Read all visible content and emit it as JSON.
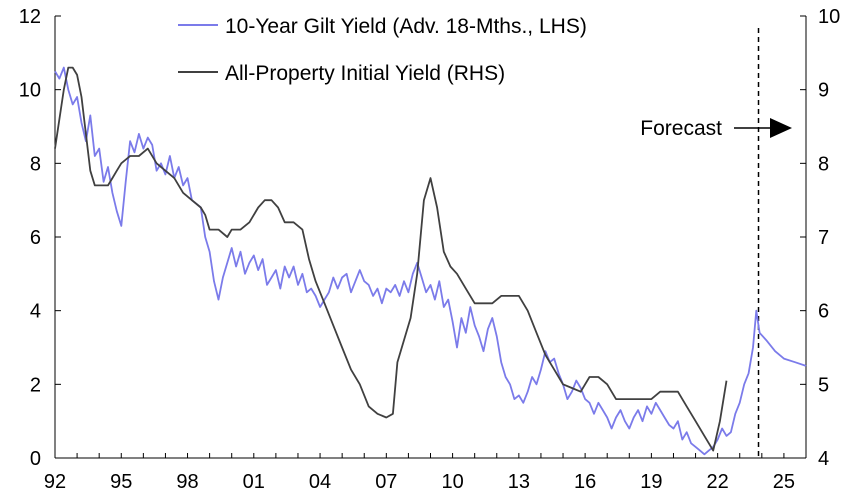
{
  "chart_data": {
    "type": "line",
    "title": "",
    "xlabel": "",
    "ylabel_left": "",
    "ylabel_right": "",
    "x_range": [
      1992.0,
      2026.0
    ],
    "ylim_left": [
      0,
      12
    ],
    "ylim_right": [
      4,
      10
    ],
    "x_ticks": [
      {
        "value": 1992,
        "label": "92"
      },
      {
        "value": 1995,
        "label": "95"
      },
      {
        "value": 1998,
        "label": "98"
      },
      {
        "value": 2001,
        "label": "01"
      },
      {
        "value": 2004,
        "label": "04"
      },
      {
        "value": 2007,
        "label": "07"
      },
      {
        "value": 2010,
        "label": "10"
      },
      {
        "value": 2013,
        "label": "13"
      },
      {
        "value": 2016,
        "label": "16"
      },
      {
        "value": 2019,
        "label": "19"
      },
      {
        "value": 2022,
        "label": "22"
      },
      {
        "value": 2025,
        "label": "25"
      }
    ],
    "y_ticks_left": [
      "0",
      "2",
      "4",
      "6",
      "8",
      "10",
      "12"
    ],
    "y_ticks_right": [
      "4",
      "5",
      "6",
      "7",
      "8",
      "9",
      "10"
    ],
    "series": [
      {
        "name": "10-Year Gilt Yield (Adv. 18-Mths., LHS)",
        "axis": "left",
        "color": "#7b7bea",
        "points": [
          [
            1992.0,
            10.5
          ],
          [
            1992.2,
            10.3
          ],
          [
            1992.4,
            10.6
          ],
          [
            1992.6,
            10.0
          ],
          [
            1992.8,
            9.6
          ],
          [
            1993.0,
            9.8
          ],
          [
            1993.2,
            9.1
          ],
          [
            1993.4,
            8.6
          ],
          [
            1993.6,
            9.3
          ],
          [
            1993.8,
            8.2
          ],
          [
            1994.0,
            8.4
          ],
          [
            1994.2,
            7.5
          ],
          [
            1994.4,
            7.9
          ],
          [
            1994.6,
            7.2
          ],
          [
            1994.8,
            6.7
          ],
          [
            1995.0,
            6.3
          ],
          [
            1995.2,
            7.5
          ],
          [
            1995.4,
            8.6
          ],
          [
            1995.6,
            8.3
          ],
          [
            1995.8,
            8.8
          ],
          [
            1996.0,
            8.4
          ],
          [
            1996.2,
            8.7
          ],
          [
            1996.4,
            8.5
          ],
          [
            1996.6,
            7.8
          ],
          [
            1996.8,
            8.0
          ],
          [
            1997.0,
            7.7
          ],
          [
            1997.2,
            8.2
          ],
          [
            1997.4,
            7.6
          ],
          [
            1997.6,
            7.9
          ],
          [
            1997.8,
            7.4
          ],
          [
            1998.0,
            7.6
          ],
          [
            1998.2,
            7.0
          ],
          [
            1998.4,
            6.9
          ],
          [
            1998.6,
            6.8
          ],
          [
            1998.8,
            6.0
          ],
          [
            1999.0,
            5.6
          ],
          [
            1999.2,
            4.8
          ],
          [
            1999.4,
            4.3
          ],
          [
            1999.6,
            4.9
          ],
          [
            1999.8,
            5.3
          ],
          [
            2000.0,
            5.7
          ],
          [
            2000.2,
            5.2
          ],
          [
            2000.4,
            5.6
          ],
          [
            2000.6,
            5.0
          ],
          [
            2000.8,
            5.3
          ],
          [
            2001.0,
            5.5
          ],
          [
            2001.2,
            5.1
          ],
          [
            2001.4,
            5.4
          ],
          [
            2001.6,
            4.7
          ],
          [
            2001.8,
            4.9
          ],
          [
            2002.0,
            5.1
          ],
          [
            2002.2,
            4.6
          ],
          [
            2002.4,
            5.2
          ],
          [
            2002.6,
            4.9
          ],
          [
            2002.8,
            5.2
          ],
          [
            2003.0,
            4.7
          ],
          [
            2003.2,
            5.0
          ],
          [
            2003.4,
            4.5
          ],
          [
            2003.6,
            4.6
          ],
          [
            2003.8,
            4.4
          ],
          [
            2004.0,
            4.1
          ],
          [
            2004.2,
            4.3
          ],
          [
            2004.4,
            4.5
          ],
          [
            2004.6,
            4.9
          ],
          [
            2004.8,
            4.6
          ],
          [
            2005.0,
            4.9
          ],
          [
            2005.2,
            5.0
          ],
          [
            2005.4,
            4.5
          ],
          [
            2005.6,
            4.8
          ],
          [
            2005.8,
            5.1
          ],
          [
            2006.0,
            4.8
          ],
          [
            2006.2,
            4.7
          ],
          [
            2006.4,
            4.4
          ],
          [
            2006.6,
            4.6
          ],
          [
            2006.8,
            4.2
          ],
          [
            2007.0,
            4.6
          ],
          [
            2007.2,
            4.5
          ],
          [
            2007.4,
            4.7
          ],
          [
            2007.6,
            4.4
          ],
          [
            2007.8,
            4.8
          ],
          [
            2008.0,
            4.5
          ],
          [
            2008.2,
            5.0
          ],
          [
            2008.4,
            5.3
          ],
          [
            2008.6,
            4.9
          ],
          [
            2008.8,
            4.5
          ],
          [
            2009.0,
            4.7
          ],
          [
            2009.2,
            4.3
          ],
          [
            2009.4,
            4.8
          ],
          [
            2009.6,
            4.1
          ],
          [
            2009.8,
            4.3
          ],
          [
            2010.0,
            3.7
          ],
          [
            2010.2,
            3.0
          ],
          [
            2010.4,
            3.8
          ],
          [
            2010.6,
            3.4
          ],
          [
            2010.8,
            4.1
          ],
          [
            2011.0,
            3.6
          ],
          [
            2011.2,
            3.3
          ],
          [
            2011.4,
            2.9
          ],
          [
            2011.6,
            3.5
          ],
          [
            2011.8,
            3.8
          ],
          [
            2012.0,
            3.3
          ],
          [
            2012.2,
            2.6
          ],
          [
            2012.4,
            2.2
          ],
          [
            2012.6,
            2.0
          ],
          [
            2012.8,
            1.6
          ],
          [
            2013.0,
            1.7
          ],
          [
            2013.2,
            1.5
          ],
          [
            2013.4,
            1.8
          ],
          [
            2013.6,
            2.2
          ],
          [
            2013.8,
            2.0
          ],
          [
            2014.0,
            2.4
          ],
          [
            2014.2,
            2.9
          ],
          [
            2014.4,
            2.6
          ],
          [
            2014.6,
            2.7
          ],
          [
            2014.8,
            2.3
          ],
          [
            2015.0,
            2.0
          ],
          [
            2015.2,
            1.6
          ],
          [
            2015.4,
            1.8
          ],
          [
            2015.6,
            2.1
          ],
          [
            2015.8,
            1.9
          ],
          [
            2016.0,
            1.6
          ],
          [
            2016.2,
            1.5
          ],
          [
            2016.4,
            1.2
          ],
          [
            2016.6,
            1.5
          ],
          [
            2016.8,
            1.3
          ],
          [
            2017.0,
            1.1
          ],
          [
            2017.2,
            0.8
          ],
          [
            2017.4,
            1.1
          ],
          [
            2017.6,
            1.3
          ],
          [
            2017.8,
            1.0
          ],
          [
            2018.0,
            0.8
          ],
          [
            2018.2,
            1.1
          ],
          [
            2018.4,
            1.3
          ],
          [
            2018.6,
            1.0
          ],
          [
            2018.8,
            1.4
          ],
          [
            2019.0,
            1.2
          ],
          [
            2019.2,
            1.5
          ],
          [
            2019.4,
            1.3
          ],
          [
            2019.6,
            1.1
          ],
          [
            2019.8,
            0.9
          ],
          [
            2020.0,
            0.8
          ],
          [
            2020.2,
            1.0
          ],
          [
            2020.4,
            0.5
          ],
          [
            2020.6,
            0.7
          ],
          [
            2020.8,
            0.4
          ],
          [
            2021.0,
            0.3
          ],
          [
            2021.2,
            0.2
          ],
          [
            2021.4,
            0.1
          ],
          [
            2021.6,
            0.2
          ],
          [
            2021.8,
            0.3
          ],
          [
            2022.0,
            0.5
          ],
          [
            2022.2,
            0.8
          ],
          [
            2022.4,
            0.6
          ],
          [
            2022.6,
            0.7
          ],
          [
            2022.8,
            1.2
          ],
          [
            2023.0,
            1.5
          ],
          [
            2023.2,
            2.0
          ],
          [
            2023.4,
            2.3
          ],
          [
            2023.6,
            3.0
          ],
          [
            2023.75,
            4.0
          ],
          [
            2023.9,
            3.4
          ],
          [
            2024.2,
            3.2
          ],
          [
            2024.6,
            2.9
          ],
          [
            2025.0,
            2.7
          ],
          [
            2025.5,
            2.6
          ],
          [
            2026.0,
            2.5
          ]
        ]
      },
      {
        "name": "All-Property Initial Yield (RHS)",
        "axis": "right",
        "color": "#404040",
        "points": [
          [
            1992.0,
            8.2
          ],
          [
            1992.2,
            8.6
          ],
          [
            1992.4,
            9.0
          ],
          [
            1992.6,
            9.3
          ],
          [
            1992.8,
            9.3
          ],
          [
            1993.0,
            9.2
          ],
          [
            1993.2,
            8.9
          ],
          [
            1993.4,
            8.4
          ],
          [
            1993.6,
            7.9
          ],
          [
            1993.8,
            7.7
          ],
          [
            1994.0,
            7.7
          ],
          [
            1994.2,
            7.7
          ],
          [
            1994.4,
            7.7
          ],
          [
            1994.6,
            7.8
          ],
          [
            1994.8,
            7.9
          ],
          [
            1995.0,
            8.0
          ],
          [
            1995.4,
            8.1
          ],
          [
            1995.8,
            8.1
          ],
          [
            1996.2,
            8.2
          ],
          [
            1996.6,
            8.0
          ],
          [
            1997.0,
            7.9
          ],
          [
            1997.4,
            7.8
          ],
          [
            1997.8,
            7.6
          ],
          [
            1998.2,
            7.5
          ],
          [
            1998.6,
            7.4
          ],
          [
            1998.8,
            7.3
          ],
          [
            1999.0,
            7.1
          ],
          [
            1999.4,
            7.1
          ],
          [
            1999.8,
            7.0
          ],
          [
            2000.0,
            7.1
          ],
          [
            2000.4,
            7.1
          ],
          [
            2000.8,
            7.2
          ],
          [
            2001.2,
            7.4
          ],
          [
            2001.5,
            7.5
          ],
          [
            2001.8,
            7.5
          ],
          [
            2002.1,
            7.4
          ],
          [
            2002.4,
            7.2
          ],
          [
            2002.8,
            7.2
          ],
          [
            2003.2,
            7.1
          ],
          [
            2003.5,
            6.7
          ],
          [
            2003.8,
            6.4
          ],
          [
            2004.2,
            6.1
          ],
          [
            2004.6,
            5.8
          ],
          [
            2005.0,
            5.5
          ],
          [
            2005.4,
            5.2
          ],
          [
            2005.8,
            5.0
          ],
          [
            2006.2,
            4.7
          ],
          [
            2006.6,
            4.6
          ],
          [
            2007.0,
            4.55
          ],
          [
            2007.3,
            4.6
          ],
          [
            2007.5,
            5.3
          ],
          [
            2007.8,
            5.6
          ],
          [
            2008.1,
            5.9
          ],
          [
            2008.4,
            6.5
          ],
          [
            2008.7,
            7.5
          ],
          [
            2009.0,
            7.8
          ],
          [
            2009.3,
            7.4
          ],
          [
            2009.6,
            6.8
          ],
          [
            2009.9,
            6.6
          ],
          [
            2010.2,
            6.5
          ],
          [
            2010.6,
            6.3
          ],
          [
            2011.0,
            6.1
          ],
          [
            2011.4,
            6.1
          ],
          [
            2011.8,
            6.1
          ],
          [
            2012.2,
            6.2
          ],
          [
            2012.6,
            6.2
          ],
          [
            2013.0,
            6.2
          ],
          [
            2013.4,
            6.0
          ],
          [
            2013.8,
            5.7
          ],
          [
            2014.2,
            5.4
          ],
          [
            2014.6,
            5.2
          ],
          [
            2015.0,
            5.0
          ],
          [
            2015.4,
            4.95
          ],
          [
            2015.8,
            4.9
          ],
          [
            2016.2,
            5.1
          ],
          [
            2016.6,
            5.1
          ],
          [
            2017.0,
            5.0
          ],
          [
            2017.4,
            4.8
          ],
          [
            2017.8,
            4.8
          ],
          [
            2018.2,
            4.8
          ],
          [
            2018.6,
            4.8
          ],
          [
            2019.0,
            4.8
          ],
          [
            2019.4,
            4.9
          ],
          [
            2019.8,
            4.9
          ],
          [
            2020.2,
            4.9
          ],
          [
            2020.6,
            4.7
          ],
          [
            2021.0,
            4.5
          ],
          [
            2021.4,
            4.3
          ],
          [
            2021.8,
            4.1
          ],
          [
            2022.1,
            4.5
          ],
          [
            2022.4,
            5.05
          ]
        ]
      }
    ],
    "forecast_x": 2023.85,
    "annotation": "Forecast",
    "legend": {
      "position": "top-center",
      "entries": [
        "10-Year Gilt Yield (Adv. 18-Mths., LHS)",
        "All-Property Initial Yield (RHS)"
      ]
    },
    "grid": false
  }
}
